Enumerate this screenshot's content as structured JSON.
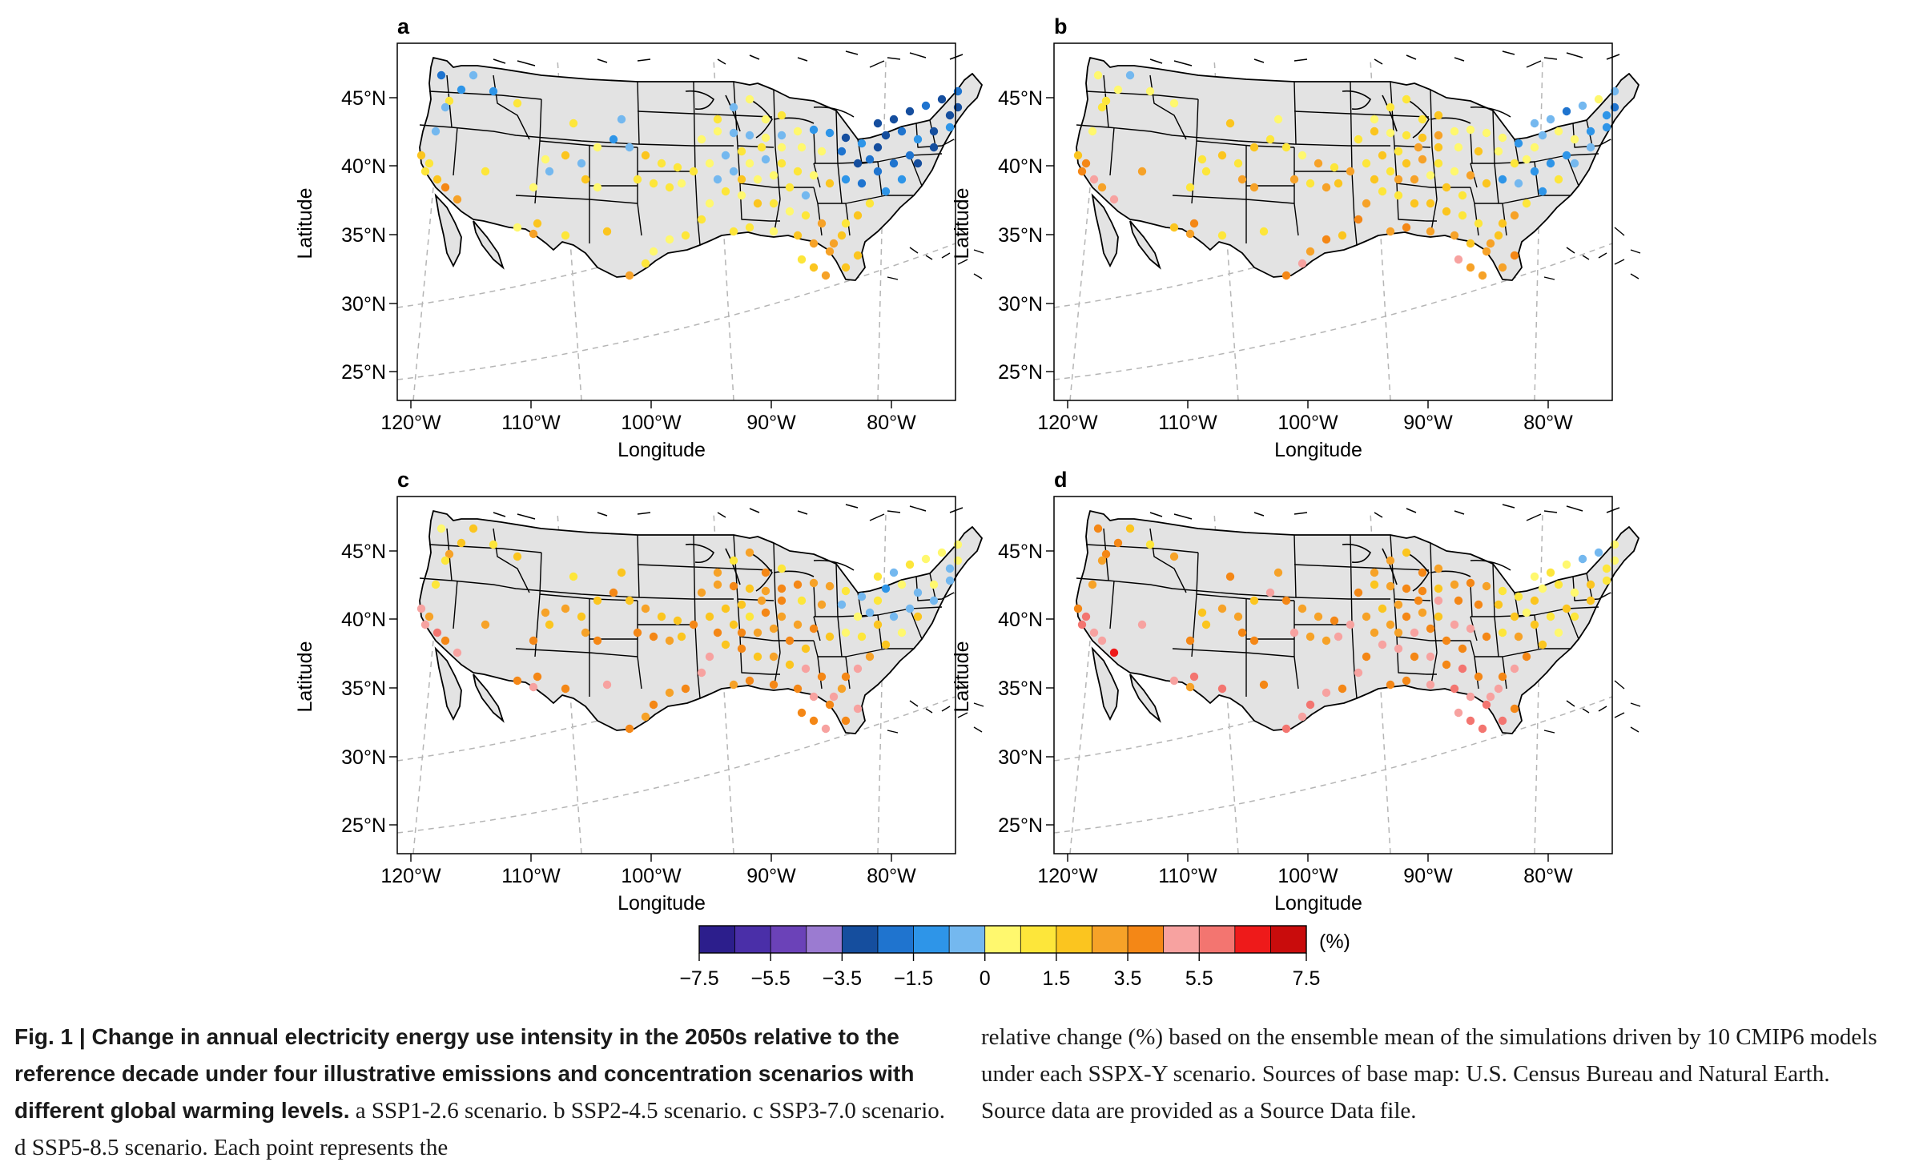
{
  "figure": {
    "panels": [
      {
        "id": "a",
        "label": "a",
        "scenario": "SSP1-2.6"
      },
      {
        "id": "b",
        "label": "b",
        "scenario": "SSP2-4.5"
      },
      {
        "id": "c",
        "label": "c",
        "scenario": "SSP3-7.0"
      },
      {
        "id": "d",
        "label": "d",
        "scenario": "SSP5-8.5"
      }
    ],
    "xlabel": "Longitude",
    "ylabel": "Latitude",
    "lon_ticks": [
      "120°W",
      "110°W",
      "100°W",
      "90°W",
      "80°W"
    ],
    "lat_ticks": [
      "45°N",
      "40°N",
      "35°N",
      "30°N",
      "25°N"
    ],
    "colorbar": {
      "unit": "(%)",
      "tick_labels": [
        "−7.5",
        "−5.5",
        "−3.5",
        "−1.5",
        "0",
        "1.5",
        "3.5",
        "5.5",
        "7.5"
      ],
      "colors": [
        "#2c1e8c",
        "#4a2fa8",
        "#6b42b8",
        "#9b7bd1",
        "#154e9e",
        "#1f74cf",
        "#2e95e8",
        "#74b8ef",
        "#fff86e",
        "#fde63a",
        "#fbc51f",
        "#f6a228",
        "#f48716",
        "#f7a2a0",
        "#f37570",
        "#ee1a1a",
        "#c90c0c"
      ]
    }
  },
  "caption": {
    "bold": "Fig. 1 | Change in annual electricity energy use intensity in the 2050s relative to the reference decade under four illustrative emissions and concentration scenarios with different global warming levels.",
    "rest": " a SSP1-2.6 scenario. b SSP2-4.5 scenario. c SSP3-7.0 scenario. d SSP5-8.5 scenario. Each point represents the",
    "right": "relative change (%) based on the ensemble mean of the simulations driven by 10 CMIP6 models under each SSPX-Y scenario. Sources of base map: U.S. Census Bureau and Natural Earth. Source data are provided as a Source Data file."
  }
}
